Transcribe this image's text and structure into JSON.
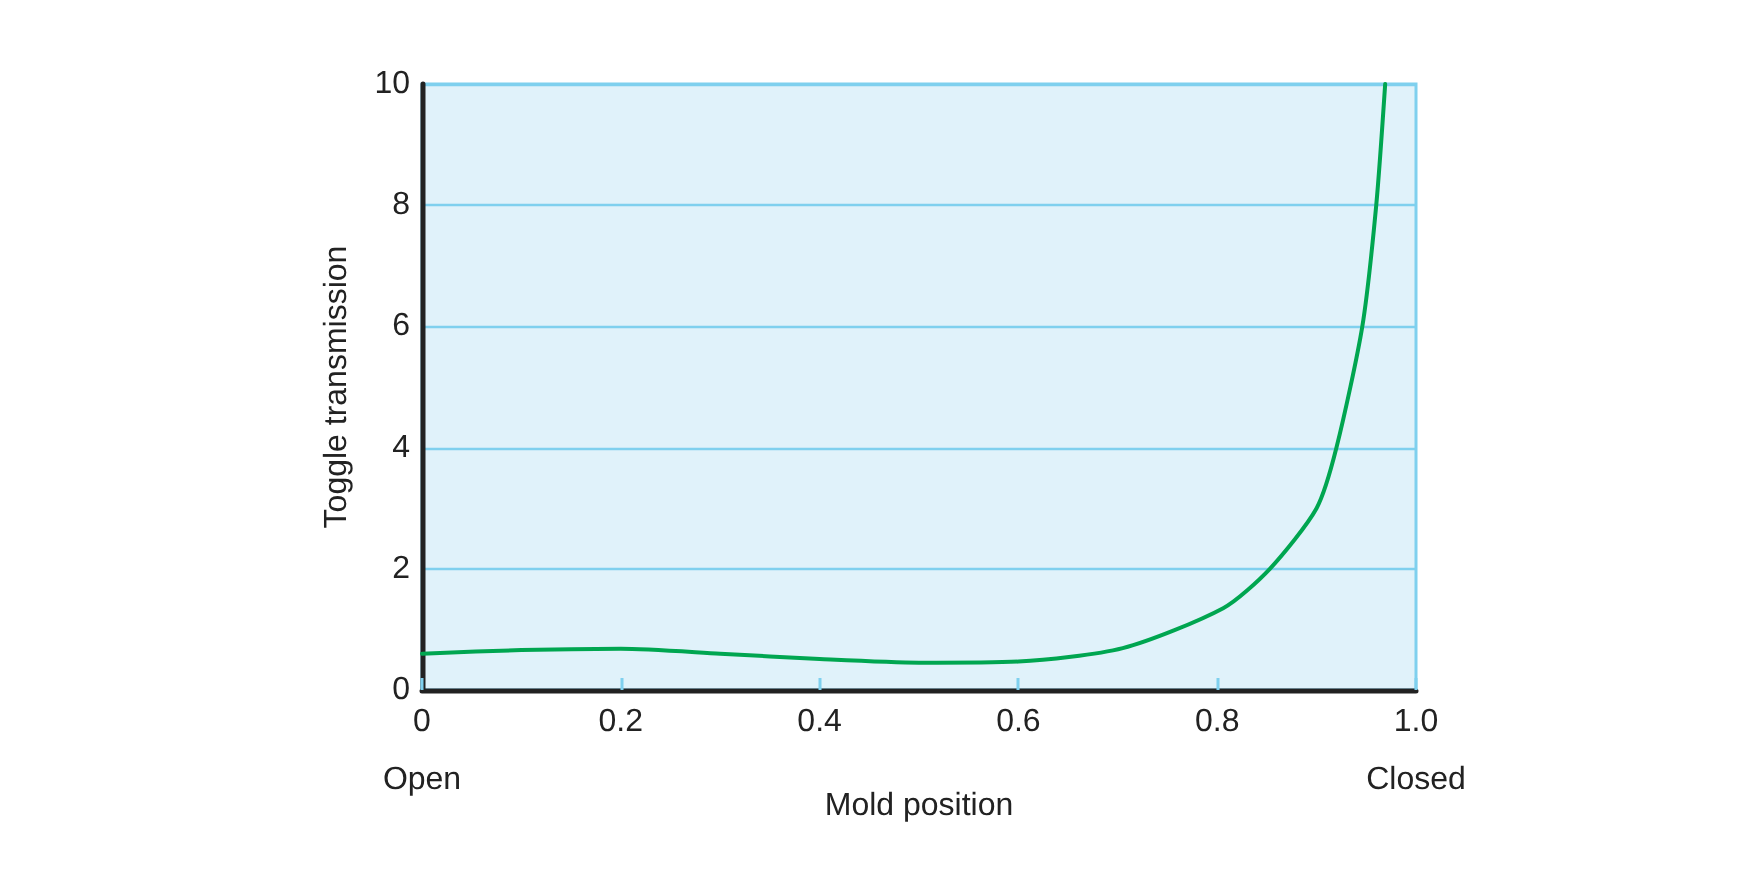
{
  "chart_data": {
    "type": "line",
    "xlabel": "Mold position",
    "ylabel": "Toggle transmission",
    "x": [
      0,
      0.1,
      0.2,
      0.3,
      0.4,
      0.5,
      0.6,
      0.705,
      0.806,
      0.853,
      0.9,
      0.92,
      0.946,
      0.96,
      0.969
    ],
    "series": [
      {
        "color": "#00a650",
        "values": [
          0.6,
          0.66,
          0.68,
          0.6,
          0.51,
          0.45,
          0.47,
          0.69,
          1.35,
          2,
          3,
          4,
          6,
          8,
          10
        ]
      }
    ],
    "xlim": [
      0,
      1
    ],
    "xticks": [
      0,
      0.2,
      0.4,
      0.6,
      0.8,
      {
        "value": 1,
        "label": "1.0"
      }
    ],
    "ylim": [
      0,
      10
    ],
    "yticks": [
      0,
      2,
      4,
      6,
      8,
      10
    ],
    "grid": "y",
    "marker": "none",
    "line_style": "solid",
    "annotations": [
      "Open",
      "Closed"
    ]
  }
}
